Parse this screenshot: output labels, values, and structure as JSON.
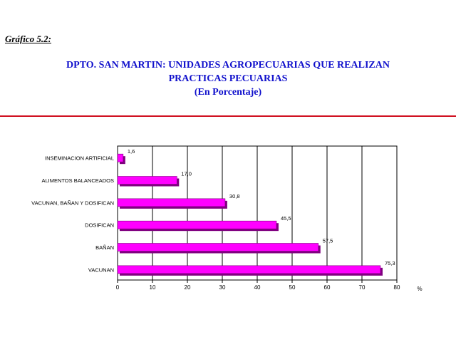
{
  "header": {
    "figure_label": "Gráfico 5.2:",
    "title_line1": "DPTO. SAN MARTIN: UNIDADES AGROPECUARIAS QUE REALIZAN",
    "title_line2": "PRACTICAS PECUARIAS",
    "title_line3": "(En Porcentaje)"
  },
  "chart_data": {
    "type": "bar",
    "orientation": "horizontal",
    "categories": [
      "INSEMINACION ARTIFICIAL",
      "ALIMENTOS BALANCEADOS",
      "VACUNAN, BAÑAN Y DOSIFICAN",
      "DOSIFICAN",
      "BAÑAN",
      "VACUNAN"
    ],
    "values": [
      1.6,
      17.0,
      30.8,
      45.5,
      57.5,
      75.3
    ],
    "value_labels": [
      "1,6",
      "17,0",
      "30,8",
      "45,5",
      "57,5",
      "75,3"
    ],
    "xlim": [
      0,
      80
    ],
    "x_ticks": [
      "0",
      "10",
      "20",
      "30",
      "40",
      "50",
      "60",
      "70",
      "80"
    ],
    "x_unit": "%",
    "grid": "vertical",
    "colors": {
      "bar": "#ff00ff",
      "bar_shadow": "#800080",
      "grid": "#000000"
    }
  }
}
